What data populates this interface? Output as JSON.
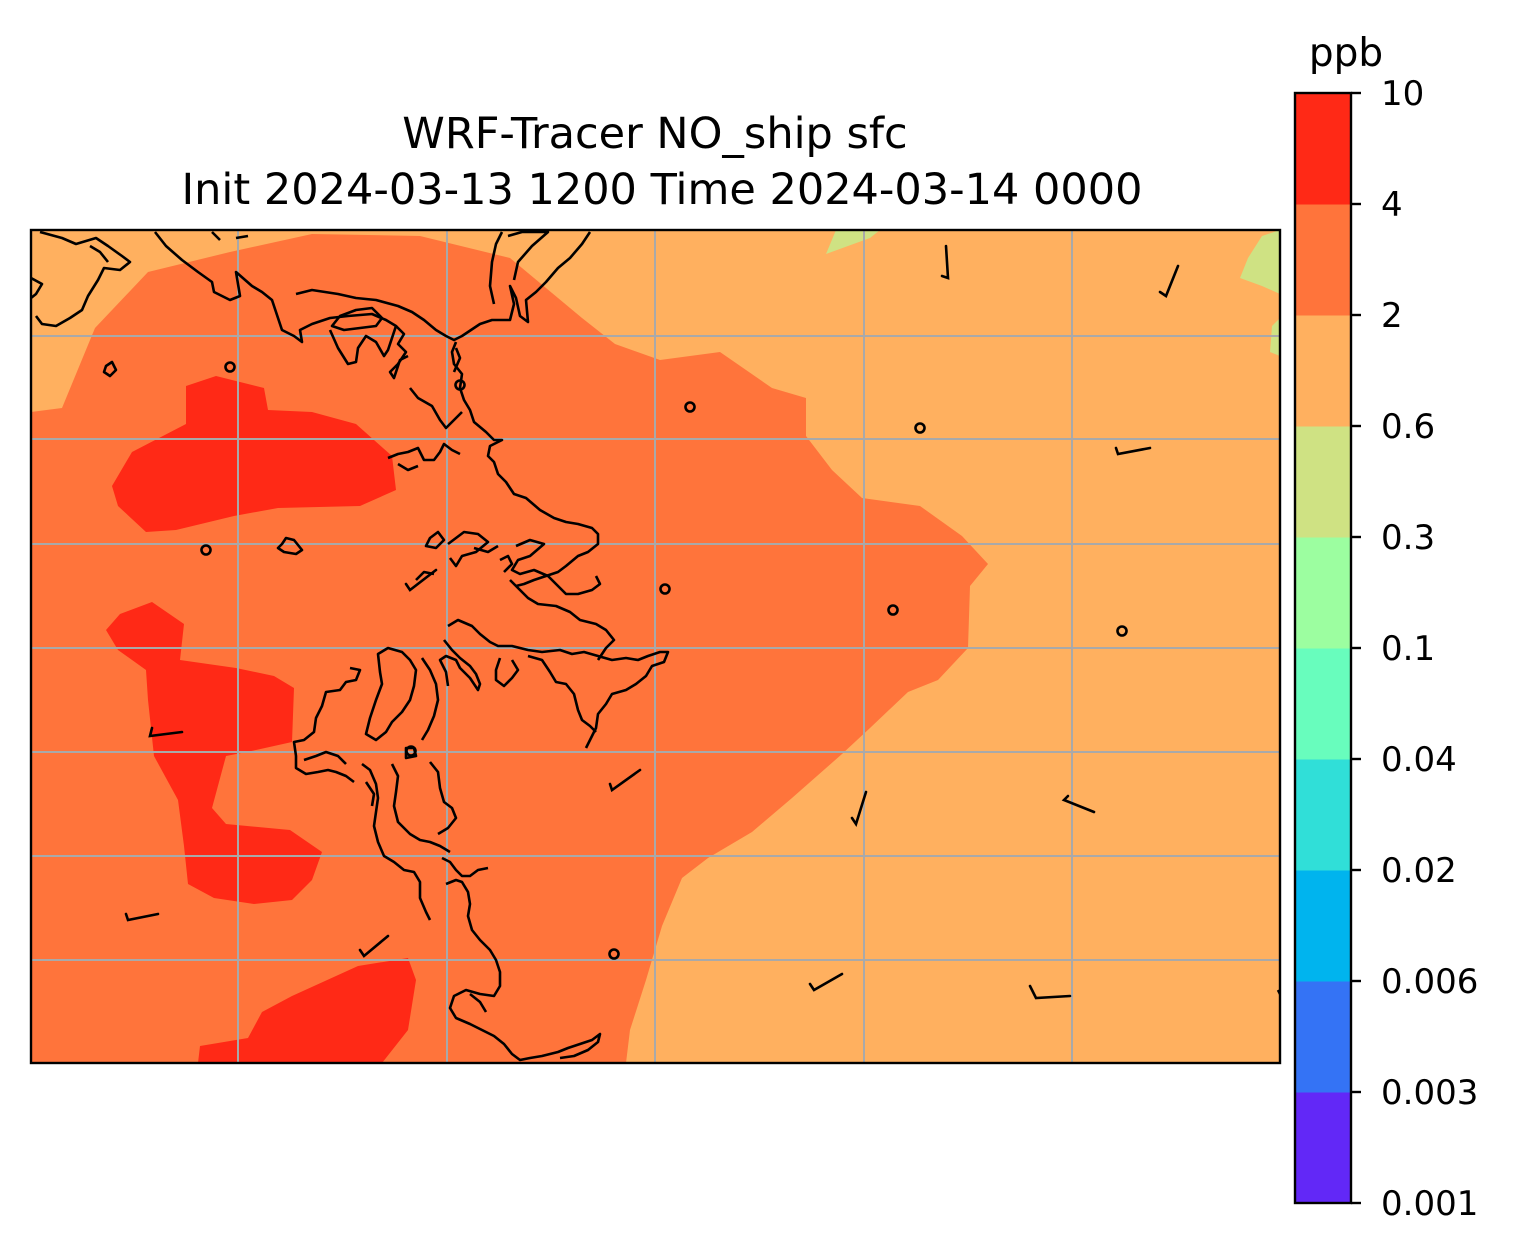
{
  "title": {
    "line1": "WRF-Tracer NO_ship sfc",
    "line2": "Init 2024-03-13 1200 Time 2024-03-14 0000"
  },
  "colorbar": {
    "unit_label": "ppb",
    "levels": [
      "0.001",
      "0.003",
      "0.006",
      "0.02",
      "0.04",
      "0.1",
      "0.3",
      "0.6",
      "2",
      "4",
      "10"
    ],
    "colors": [
      "#6228f7",
      "#3473f5",
      "#00b4ee",
      "#30dfd8",
      "#68fdbd",
      "#9cfea0",
      "#cfe283",
      "#ffb05f",
      "#ff743b",
      "#ff2916"
    ]
  },
  "map": {
    "fill_colors": {
      "band_0_6_to_2": "#ffb05f",
      "band_2_to_4": "#ff743b",
      "band_4_to_10": "#ff2916",
      "band_0_3_to_0_6": "#cfe283"
    },
    "coastline_color": "#000000",
    "gridline_color": "#a9a9a9",
    "gridlines": true,
    "wind_barbs": true
  }
}
